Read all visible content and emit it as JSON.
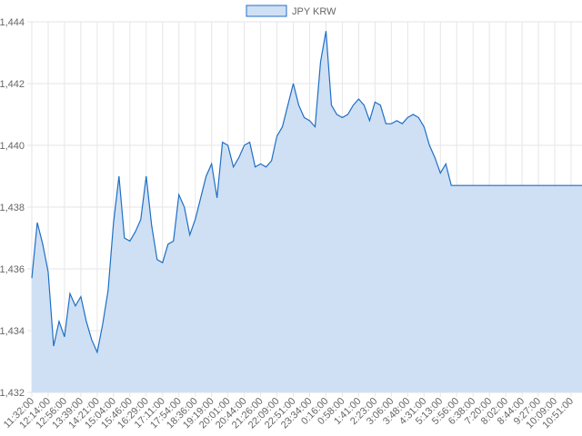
{
  "chart_data": {
    "type": "area",
    "categories": [
      "11:32:00",
      null,
      null,
      "12:14:00",
      null,
      null,
      "12:56:00",
      null,
      null,
      "13:39:00",
      null,
      null,
      "14:21:00",
      null,
      null,
      "15:04:00",
      null,
      null,
      "15:46:00",
      null,
      null,
      "16:29:00",
      null,
      null,
      "17:11:00",
      null,
      null,
      "17:54:00",
      null,
      null,
      "18:36:00",
      null,
      null,
      "19:19:00",
      null,
      null,
      "20:01:00",
      null,
      null,
      "20:44:00",
      null,
      null,
      "21:26:00",
      null,
      null,
      "22:09:00",
      null,
      null,
      "22:51:00",
      null,
      null,
      "23:34:00",
      null,
      null,
      "0:16:00",
      null,
      null,
      "0:58:00",
      null,
      null,
      "1:41:00",
      null,
      null,
      "2:23:00",
      null,
      null,
      "3:06:00",
      null,
      null,
      "3:48:00",
      null,
      null,
      "4:31:00",
      null,
      null,
      "5:13:00",
      null,
      null,
      "5:56:00",
      null,
      null,
      "6:38:00",
      null,
      null,
      "7:20:00",
      null,
      null,
      "8:02:00",
      null,
      null,
      "8:44:00",
      null,
      null,
      "9:27:00",
      null,
      null,
      "10:09:00",
      null,
      null,
      "10:51:00",
      null,
      null
    ],
    "series": [
      {
        "name": "JPY KRW",
        "color": "#1f6fc5",
        "fill": "#cfe0f4",
        "values": [
          1435.7,
          1437.5,
          1436.8,
          1435.9,
          1433.5,
          1434.3,
          1433.8,
          1435.2,
          1434.8,
          1435.1,
          1434.3,
          1433.7,
          1433.3,
          1434.2,
          1435.3,
          1437.5,
          1439.0,
          1437.0,
          1436.9,
          1437.2,
          1437.6,
          1439.0,
          1437.4,
          1436.3,
          1436.2,
          1436.8,
          1436.9,
          1438.4,
          1438.0,
          1437.1,
          1437.6,
          1438.3,
          1439.0,
          1439.4,
          1438.3,
          1440.1,
          1440.0,
          1439.3,
          1439.6,
          1440.0,
          1440.1,
          1439.3,
          1439.4,
          1439.3,
          1439.5,
          1440.3,
          1440.6,
          1441.3,
          1442.0,
          1441.3,
          1440.9,
          1440.8,
          1440.6,
          1442.7,
          1443.7,
          1441.3,
          1441.0,
          1440.9,
          1441.0,
          1441.3,
          1441.5,
          1441.3,
          1440.8,
          1441.4,
          1441.3,
          1440.7,
          1440.7,
          1440.8,
          1440.7,
          1440.9,
          1441.0,
          1440.9,
          1440.6,
          1440.0,
          1439.6,
          1439.1,
          1439.4,
          1438.7,
          1438.7,
          1438.7,
          1438.7,
          1438.7,
          1438.7,
          1438.7,
          1438.7,
          1438.7,
          1438.7,
          1438.7,
          1438.7,
          1438.7,
          1438.7,
          1438.7,
          1438.7,
          1438.7,
          1438.7,
          1438.7,
          1438.7,
          1438.7,
          1438.7,
          1438.7,
          1438.7,
          1438.7
        ]
      }
    ],
    "ylim": [
      1432,
      1444
    ],
    "yticks": [
      {
        "value": 1432,
        "label": "1,432"
      },
      {
        "value": 1434,
        "label": "1,434"
      },
      {
        "value": 1436,
        "label": "1,436"
      },
      {
        "value": 1438,
        "label": "1,438"
      },
      {
        "value": 1440,
        "label": "1,440"
      },
      {
        "value": 1442,
        "label": "1,442"
      },
      {
        "value": 1444,
        "label": "1,444"
      }
    ],
    "grid": true,
    "legend": "top"
  }
}
